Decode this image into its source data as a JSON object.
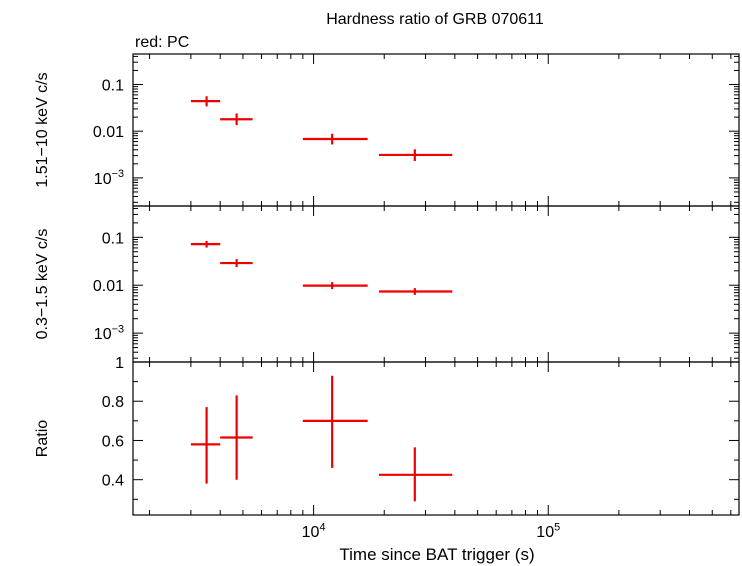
{
  "chart_data": [
    {
      "type": "scatter",
      "title": "Hardness ratio of GRB 070611",
      "annotation": "red: PC",
      "xscale": "log",
      "yscale": "log",
      "xlim": [
        1700,
        650000
      ],
      "ylim": [
        0.00025,
        0.45
      ],
      "ylabel": "1.51−10 keV c/s",
      "yticks": [
        {
          "value": 0.1,
          "label": "0.1"
        },
        {
          "value": 0.01,
          "label": "0.01"
        },
        {
          "value": 0.001,
          "base": "10",
          "exp": "−3"
        }
      ],
      "series": [
        {
          "color": "#ee0000",
          "points": [
            {
              "x": 3500,
              "xlo": 3000,
              "xhi": 4000,
              "y": 0.044,
              "ylo": 0.034,
              "yhi": 0.056
            },
            {
              "x": 4700,
              "xlo": 4000,
              "xhi": 5500,
              "y": 0.018,
              "ylo": 0.0135,
              "yhi": 0.024
            },
            {
              "x": 12000,
              "xlo": 9000,
              "xhi": 17000,
              "y": 0.0068,
              "ylo": 0.0052,
              "yhi": 0.0088
            },
            {
              "x": 27000,
              "xlo": 19000,
              "xhi": 39000,
              "y": 0.0031,
              "ylo": 0.0023,
              "yhi": 0.0041
            }
          ]
        }
      ]
    },
    {
      "type": "scatter",
      "xscale": "log",
      "yscale": "log",
      "xlim": [
        1700,
        650000
      ],
      "ylim": [
        0.00025,
        0.45
      ],
      "ylabel": "0.3−1.5 keV c/s",
      "yticks": [
        {
          "value": 0.1,
          "label": "0.1"
        },
        {
          "value": 0.01,
          "label": "0.01"
        },
        {
          "value": 0.001,
          "base": "10",
          "exp": "−3"
        }
      ],
      "series": [
        {
          "color": "#ee0000",
          "points": [
            {
              "x": 3500,
              "xlo": 3000,
              "xhi": 4000,
              "y": 0.072,
              "ylo": 0.061,
              "yhi": 0.084
            },
            {
              "x": 4700,
              "xlo": 4000,
              "xhi": 5500,
              "y": 0.029,
              "ylo": 0.024,
              "yhi": 0.035
            },
            {
              "x": 12000,
              "xlo": 9000,
              "xhi": 17000,
              "y": 0.0098,
              "ylo": 0.0083,
              "yhi": 0.0116
            },
            {
              "x": 27000,
              "xlo": 19000,
              "xhi": 39000,
              "y": 0.0074,
              "ylo": 0.0063,
              "yhi": 0.0087
            }
          ]
        }
      ]
    },
    {
      "type": "scatter",
      "xscale": "log",
      "yscale": "linear",
      "xlim": [
        1700,
        650000
      ],
      "ylim": [
        0.22,
        1.0
      ],
      "ylabel": "Ratio",
      "xlabel": "Time since BAT trigger (s)",
      "xticks": [
        {
          "value": 10000,
          "base": "10",
          "exp": "4"
        },
        {
          "value": 100000,
          "base": "10",
          "exp": "5"
        }
      ],
      "yticks": [
        {
          "value": 1,
          "label": "1"
        },
        {
          "value": 0.8,
          "label": "0.8"
        },
        {
          "value": 0.6,
          "label": "0.6"
        },
        {
          "value": 0.4,
          "label": "0.4"
        }
      ],
      "series": [
        {
          "color": "#ee0000",
          "points": [
            {
              "x": 3500,
              "xlo": 3000,
              "xhi": 4000,
              "y": 0.58,
              "ylo": 0.38,
              "yhi": 0.77
            },
            {
              "x": 4700,
              "xlo": 4000,
              "xhi": 5500,
              "y": 0.615,
              "ylo": 0.4,
              "yhi": 0.83
            },
            {
              "x": 12000,
              "xlo": 9000,
              "xhi": 17000,
              "y": 0.7,
              "ylo": 0.46,
              "yhi": 0.93
            },
            {
              "x": 27000,
              "xlo": 19000,
              "xhi": 39000,
              "y": 0.425,
              "ylo": 0.29,
              "yhi": 0.565
            }
          ]
        }
      ]
    }
  ]
}
